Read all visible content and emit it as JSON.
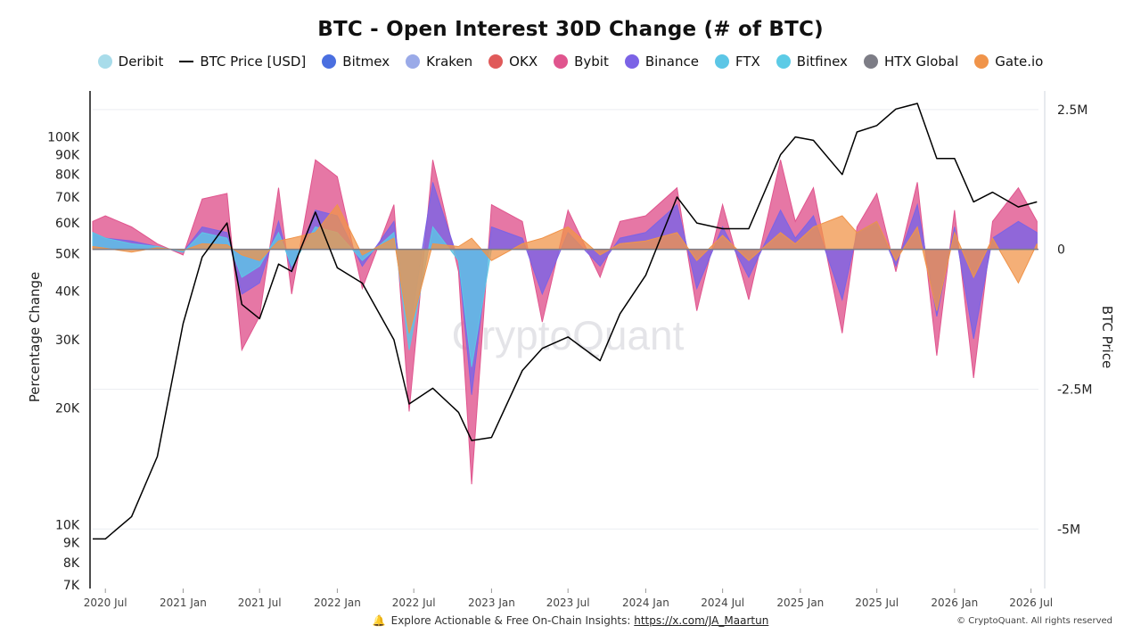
{
  "title": "BTC - Open Interest 30D Change (# of BTC)",
  "legend": [
    {
      "name": "Deribit",
      "color": "#a8dcea",
      "kind": "dot"
    },
    {
      "name": "BTC Price [USD]",
      "color": "#000000",
      "kind": "line"
    },
    {
      "name": "Bitmex",
      "color": "#4a6fe0",
      "kind": "dot"
    },
    {
      "name": "Kraken",
      "color": "#9aaae8",
      "kind": "dot"
    },
    {
      "name": "OKX",
      "color": "#e05a5a",
      "kind": "dot"
    },
    {
      "name": "Bybit",
      "color": "#e0558e",
      "kind": "dot"
    },
    {
      "name": "Binance",
      "color": "#7b63e6",
      "kind": "dot"
    },
    {
      "name": "FTX",
      "color": "#5cc6e6",
      "kind": "dot"
    },
    {
      "name": "Bitfinex",
      "color": "#5ccbe6",
      "kind": "dot"
    },
    {
      "name": "HTX Global",
      "color": "#7d7d86",
      "kind": "dot"
    },
    {
      "name": "Gate.io",
      "color": "#f0944a",
      "kind": "dot"
    }
  ],
  "axes": {
    "left_label": "Percentage Change",
    "right_label": "BTC Price",
    "left_ticks": [
      "100K",
      "90K",
      "80K",
      "70K",
      "60K",
      "50K",
      "40K",
      "30K",
      "20K",
      "10K",
      "9K",
      "8K",
      "7K"
    ],
    "right_ticks": [
      "2.5M",
      "0",
      "-2.5M",
      "-5M"
    ],
    "x_ticks": [
      "2020 Jul",
      "2021 Jan",
      "2021 Jul",
      "2022 Jan",
      "2022 Jul",
      "2023 Jan",
      "2023 Jul",
      "2024 Jan",
      "2024 Jul",
      "2025 Jan",
      "2025 Jul",
      "2026 Jan",
      "2026 Jul"
    ]
  },
  "watermark": "CryptoQuant",
  "footer": {
    "text": "Explore Actionable & Free On-Chain Insights: ",
    "link": "https://x.com/JA_Maartun",
    "copyright": "© CryptoQuant. All rights reserved"
  },
  "chart_data": {
    "type": "area",
    "title": "BTC - Open Interest 30D Change (# of BTC)",
    "ylabel_left": "Percentage Change",
    "ylabel_right": "BTC Price",
    "y_left_scale": "log",
    "y_left_range": [
      7000,
      130000
    ],
    "y_right_range": [
      -6000000,
      2800000
    ],
    "legend_position": "top",
    "grid": true,
    "x": [
      "2020-06-01",
      "2020-07-01",
      "2020-09-01",
      "2020-11-01",
      "2021-01-01",
      "2021-02-15",
      "2021-04-15",
      "2021-05-20",
      "2021-07-01",
      "2021-08-15",
      "2021-09-15",
      "2021-11-10",
      "2022-01-01",
      "2022-03-01",
      "2022-05-15",
      "2022-06-20",
      "2022-08-15",
      "2022-10-15",
      "2022-11-15",
      "2023-01-01",
      "2023-03-15",
      "2023-05-01",
      "2023-07-01",
      "2023-09-15",
      "2023-11-01",
      "2024-01-01",
      "2024-03-15",
      "2024-05-01",
      "2024-07-01",
      "2024-09-01",
      "2024-11-15",
      "2024-12-20",
      "2025-02-01",
      "2025-04-10",
      "2025-05-15",
      "2025-07-01",
      "2025-08-15",
      "2025-10-05",
      "2025-11-20",
      "2026-01-01",
      "2026-02-15",
      "2026-04-01",
      "2026-06-01",
      "2026-07-15"
    ],
    "series": [
      {
        "name": "BTC Price [USD]",
        "axis": "left",
        "values": [
          9200,
          9200,
          10500,
          15000,
          33000,
          49000,
          60000,
          37000,
          34000,
          47000,
          45000,
          64000,
          46000,
          42000,
          30000,
          20500,
          22500,
          19500,
          16500,
          16800,
          25000,
          28500,
          30500,
          26500,
          35000,
          44000,
          70000,
          60000,
          58000,
          58000,
          90000,
          100000,
          98000,
          80000,
          103000,
          107000,
          118000,
          122000,
          88000,
          88000,
          68000,
          72000,
          66000,
          68000
        ]
      },
      {
        "name": "Binance",
        "axis": "right",
        "values": [
          300000,
          200000,
          150000,
          50000,
          -50000,
          400000,
          300000,
          -800000,
          -600000,
          500000,
          -400000,
          700000,
          600000,
          -300000,
          500000,
          -1500000,
          1200000,
          -200000,
          -2600000,
          400000,
          200000,
          -800000,
          300000,
          -300000,
          200000,
          300000,
          800000,
          -700000,
          400000,
          -500000,
          700000,
          200000,
          600000,
          -900000,
          300000,
          500000,
          -300000,
          800000,
          -1200000,
          400000,
          -1600000,
          200000,
          500000,
          300000
        ]
      },
      {
        "name": "Bybit",
        "axis": "right",
        "values": [
          500000,
          600000,
          400000,
          100000,
          -100000,
          900000,
          1000000,
          -1800000,
          -1200000,
          1100000,
          -800000,
          1600000,
          1300000,
          -700000,
          800000,
          -2900000,
          1600000,
          -400000,
          -4200000,
          800000,
          500000,
          -1300000,
          700000,
          -500000,
          500000,
          600000,
          1100000,
          -1100000,
          800000,
          -900000,
          1600000,
          500000,
          1100000,
          -1500000,
          400000,
          1000000,
          -400000,
          1200000,
          -1900000,
          700000,
          -2300000,
          500000,
          1100000,
          500000
        ]
      },
      {
        "name": "Gate.io",
        "axis": "right",
        "values": [
          50000,
          20000,
          -50000,
          30000,
          -20000,
          100000,
          80000,
          -100000,
          -200000,
          150000,
          200000,
          300000,
          800000,
          -100000,
          200000,
          -1500000,
          100000,
          50000,
          200000,
          -200000,
          100000,
          200000,
          400000,
          -100000,
          100000,
          150000,
          300000,
          -200000,
          250000,
          -200000,
          300000,
          100000,
          400000,
          600000,
          300000,
          500000,
          -200000,
          400000,
          -1100000,
          300000,
          -500000,
          200000,
          -600000,
          100000
        ]
      },
      {
        "name": "FTX",
        "axis": "right",
        "values": [
          300000,
          200000,
          100000,
          50000,
          -50000,
          300000,
          200000,
          -500000,
          -300000,
          300000,
          -300000,
          400000,
          300000,
          -200000,
          300000,
          -1800000,
          400000,
          -200000,
          -2100000,
          0,
          0,
          0,
          0,
          0,
          0,
          0,
          0,
          0,
          0,
          0,
          0,
          0,
          0,
          0,
          0,
          0,
          0,
          0,
          0,
          0,
          0,
          0,
          0,
          0
        ]
      }
    ]
  }
}
